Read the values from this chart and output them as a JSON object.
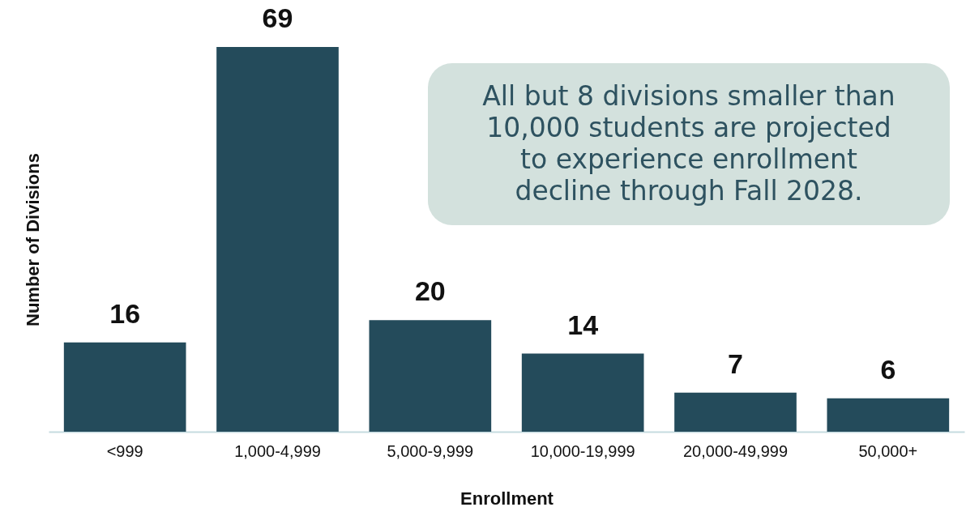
{
  "chart_data": {
    "type": "bar",
    "xlabel": "Enrollment",
    "ylabel": "Number of Divisions",
    "categories": [
      "<999",
      "1,000-4,999",
      "5,000-9,999",
      "10,000-19,999",
      "20,000-49,999",
      "50,000+"
    ],
    "values": [
      16,
      69,
      20,
      14,
      7,
      6
    ],
    "color": "#244b5b",
    "data_labels": true,
    "tick_labels": "x",
    "grid": false,
    "annotations": [
      "All but 8 divisions smaller than 10,000 students are projected to experience enrollment decline through Fall 2028."
    ]
  }
}
